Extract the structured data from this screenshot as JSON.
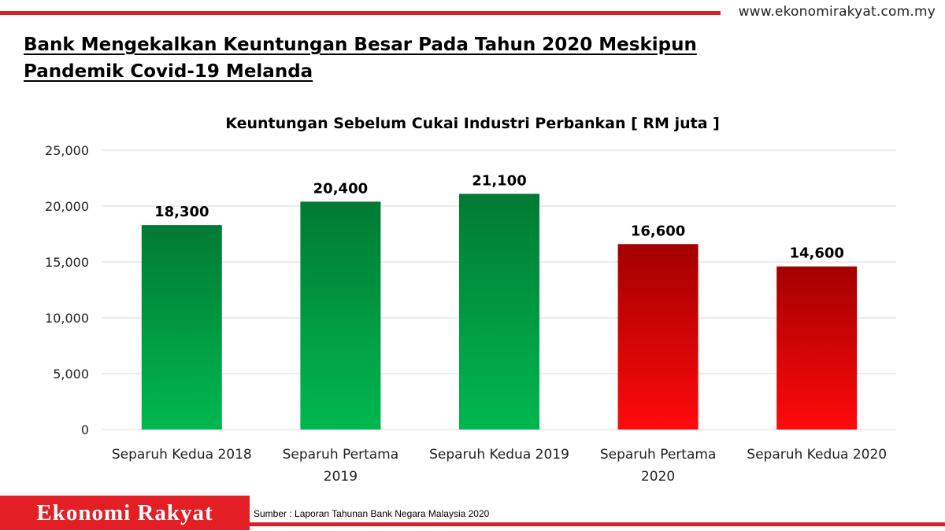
{
  "header": {
    "website": "www.ekonomirakyat.com.my",
    "headline_line1": "Bank Mengekalkan Keuntungan Besar Pada Tahun 2020 Meskipun",
    "headline_line2": "Pandemik Covid-19 Melanda"
  },
  "footer": {
    "brand": "Ekonomi Rakyat",
    "source": "Sumber : Laporan Tahunan Bank Negara Malaysia 2020"
  },
  "colors": {
    "accent_red": "#d2232a",
    "brand_bg": "#e31e24",
    "green_top": "#007a33",
    "green_bottom": "#00b84f",
    "red_top": "#a30000",
    "red_bottom": "#ff0a0a",
    "grid": "#d9d9d9"
  },
  "chart_data": {
    "type": "bar",
    "title": "Keuntungan Sebelum Cukai Industri Perbankan [ RM juta ]",
    "categories": [
      [
        "Separuh Kedua 2018"
      ],
      [
        "Separuh Pertama",
        "2019"
      ],
      [
        "Separuh Kedua 2019"
      ],
      [
        "Separuh Pertama",
        "2020"
      ],
      [
        "Separuh Kedua 2020"
      ]
    ],
    "values": [
      18300,
      20400,
      21100,
      16600,
      14600
    ],
    "data_labels": [
      "18,300",
      "20,400",
      "21,100",
      "16,600",
      "14,600"
    ],
    "bar_colors": [
      "green",
      "green",
      "green",
      "red",
      "red"
    ],
    "ylim": [
      0,
      25000
    ],
    "yticks": [
      0,
      5000,
      10000,
      15000,
      20000,
      25000
    ],
    "ytick_labels": [
      "0",
      "5,000",
      "10,000",
      "15,000",
      "20,000",
      "25,000"
    ],
    "grid": true,
    "legend": "none"
  }
}
